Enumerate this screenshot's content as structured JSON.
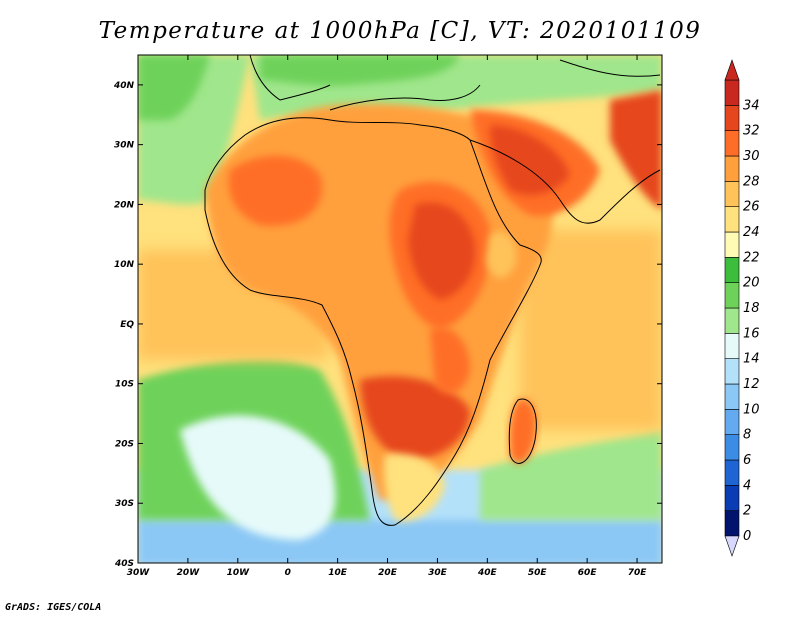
{
  "title": "Temperature at 1000hPa [C], VT: 2020101109",
  "credit": "GrADS: IGES/COLA",
  "map": {
    "lon_range": [
      -30,
      75
    ],
    "lat_range": [
      -40,
      45
    ],
    "lon_ticks": [
      {
        "v": -30,
        "label": "30W"
      },
      {
        "v": -20,
        "label": "20W"
      },
      {
        "v": -10,
        "label": "10W"
      },
      {
        "v": 0,
        "label": "0"
      },
      {
        "v": 10,
        "label": "10E"
      },
      {
        "v": 20,
        "label": "20E"
      },
      {
        "v": 30,
        "label": "30E"
      },
      {
        "v": 40,
        "label": "40E"
      },
      {
        "v": 50,
        "label": "50E"
      },
      {
        "v": 60,
        "label": "60E"
      },
      {
        "v": 70,
        "label": "70E"
      }
    ],
    "lat_ticks": [
      {
        "v": 40,
        "label": "40N"
      },
      {
        "v": 30,
        "label": "30N"
      },
      {
        "v": 20,
        "label": "20N"
      },
      {
        "v": 10,
        "label": "10N"
      },
      {
        "v": 0,
        "label": "EQ"
      },
      {
        "v": -10,
        "label": "10S"
      },
      {
        "v": -20,
        "label": "20S"
      },
      {
        "v": -30,
        "label": "30S"
      },
      {
        "v": -40,
        "label": "40S"
      }
    ]
  },
  "colorbar": {
    "levels": [
      "0",
      "2",
      "4",
      "6",
      "8",
      "10",
      "12",
      "14",
      "16",
      "18",
      "20",
      "22",
      "24",
      "26",
      "28",
      "30",
      "32",
      "34"
    ],
    "colors": [
      "#00146e",
      "#0a3cb4",
      "#1e64d2",
      "#3c8ce6",
      "#64aaf0",
      "#8cc8f5",
      "#b4e1fa",
      "#e6fafa",
      "#a0e68c",
      "#6ed25a",
      "#3cbe3c",
      "#fffab4",
      "#ffe17d",
      "#ffc35a",
      "#ffa03c",
      "#ff6e28",
      "#e6461e",
      "#c8281e"
    ]
  }
}
